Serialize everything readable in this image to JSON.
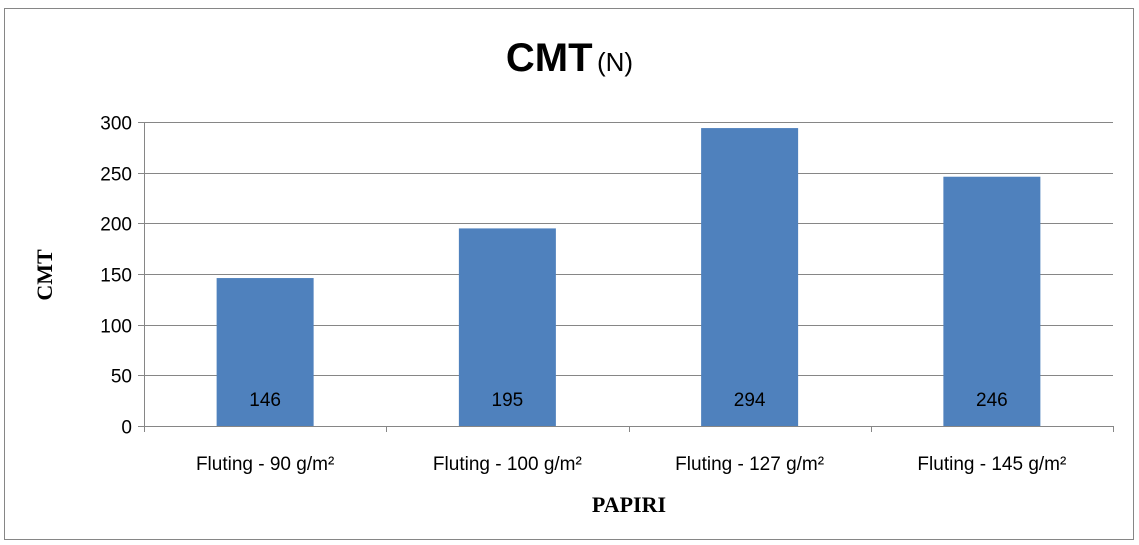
{
  "chart_data": {
    "type": "bar",
    "title": "CMT",
    "title_unit": "(N)",
    "xlabel": "PAPIRI",
    "ylabel": "CMT",
    "categories": [
      "Fluting - 90 g/m²",
      "Fluting - 100 g/m²",
      "Fluting - 127 g/m²",
      "Fluting - 145 g/m²"
    ],
    "values": [
      146,
      195,
      294,
      246
    ],
    "data_labels": [
      "146",
      "195",
      "294",
      "246"
    ],
    "ylim": [
      0,
      300
    ],
    "yticks": [
      0,
      50,
      100,
      150,
      200,
      250,
      300
    ],
    "grid": true,
    "legend": "none",
    "bar_color": "#4f81bd",
    "gridline_color": "#868686"
  }
}
